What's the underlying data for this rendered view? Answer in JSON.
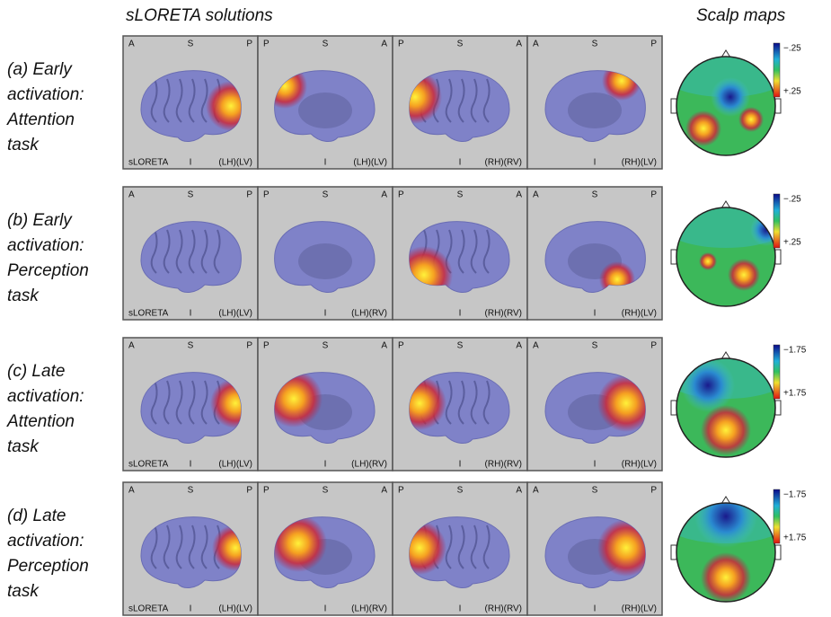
{
  "header": {
    "sloreta_title": "sLORETA solutions",
    "scalp_title": "Scalp maps"
  },
  "rows": [
    {
      "label": [
        "(a) Early",
        "activation:",
        "Attention",
        "task"
      ],
      "panels": [
        {
          "top": [
            "A",
            "S",
            "P"
          ],
          "bottom": [
            "sLORETA",
            "I",
            "(LH)(LV)"
          ]
        },
        {
          "top": [
            "P",
            "S",
            "A"
          ],
          "bottom": [
            "I",
            "(LH)(LV)"
          ]
        },
        {
          "top": [
            "P",
            "S",
            "A"
          ],
          "bottom": [
            "I",
            "(RH)(RV)"
          ]
        },
        {
          "top": [
            "A",
            "S",
            "P"
          ],
          "bottom": [
            "I",
            "(RH)(LV)"
          ]
        }
      ],
      "scale": [
        "−.25",
        "+.25"
      ]
    },
    {
      "label": [
        "(b) Early",
        "activation:",
        "Perception",
        "task"
      ],
      "panels": [
        {
          "top": [
            "A",
            "S",
            "P"
          ],
          "bottom": [
            "sLORETA",
            "I",
            "(LH)(LV)"
          ]
        },
        {
          "top": [
            "P",
            "S",
            "A"
          ],
          "bottom": [
            "I",
            "(LH)(RV)"
          ]
        },
        {
          "top": [
            "P",
            "S",
            "A"
          ],
          "bottom": [
            "I",
            "(RH)(RV)"
          ]
        },
        {
          "top": [
            "A",
            "S",
            "P"
          ],
          "bottom": [
            "I",
            "(RH)(LV)"
          ]
        }
      ],
      "scale": [
        "−.25",
        "+.25"
      ]
    },
    {
      "label": [
        "(c) Late",
        "activation:",
        "Attention",
        "task"
      ],
      "panels": [
        {
          "top": [
            "A",
            "S",
            "P"
          ],
          "bottom": [
            "sLORETA",
            "I",
            "(LH)(LV)"
          ]
        },
        {
          "top": [
            "P",
            "S",
            "A"
          ],
          "bottom": [
            "I",
            "(LH)(RV)"
          ]
        },
        {
          "top": [
            "P",
            "S",
            "A"
          ],
          "bottom": [
            "I",
            "(RH)(RV)"
          ]
        },
        {
          "top": [
            "A",
            "S",
            "P"
          ],
          "bottom": [
            "I",
            "(RH)(LV)"
          ]
        }
      ],
      "scale": [
        "−1.75",
        "+1.75"
      ]
    },
    {
      "label": [
        "(d) Late",
        "activation:",
        "Perception",
        "task"
      ],
      "panels": [
        {
          "top": [
            "A",
            "S",
            "P"
          ],
          "bottom": [
            "sLORETA",
            "I",
            "(LH)(LV)"
          ]
        },
        {
          "top": [
            "P",
            "S",
            "A"
          ],
          "bottom": [
            "I",
            "(LH)(RV)"
          ]
        },
        {
          "top": [
            "P",
            "S",
            "A"
          ],
          "bottom": [
            "I",
            "(RH)(RV)"
          ]
        },
        {
          "top": [
            "A",
            "S",
            "P"
          ],
          "bottom": [
            "I",
            "(RH)(LV)"
          ]
        }
      ],
      "scale": [
        "−1.75",
        "+1.75"
      ]
    }
  ]
}
